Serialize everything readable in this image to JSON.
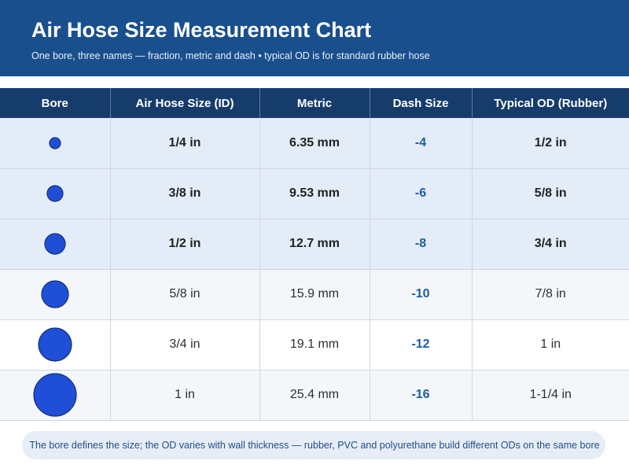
{
  "header": {
    "title": "Air Hose Size Measurement Chart",
    "subtitle": "One bore, three names — fraction, metric and dash • typical OD is for standard rubber hose"
  },
  "table": {
    "columns": [
      "Bore",
      "Air Hose Size (ID)",
      "Metric",
      "Dash Size",
      "Typical OD (Rubber)"
    ],
    "rows": [
      {
        "id": "1/4 in",
        "metric": "6.35 mm",
        "dash": "-4",
        "od": "1/2 in",
        "highlight": true
      },
      {
        "id": "3/8 in",
        "metric": "9.53 mm",
        "dash": "-6",
        "od": "5/8 in",
        "highlight": true
      },
      {
        "id": "1/2 in",
        "metric": "12.7 mm",
        "dash": "-8",
        "od": "3/4 in",
        "highlight": true
      },
      {
        "id": "5/8 in",
        "metric": "15.9 mm",
        "dash": "-10",
        "od": "7/8 in",
        "highlight": false
      },
      {
        "id": "3/4 in",
        "metric": "19.1 mm",
        "dash": "-12",
        "od": "1 in",
        "highlight": false
      },
      {
        "id": "1 in",
        "metric": "25.4 mm",
        "dash": "-16",
        "od": "1-1/4 in",
        "highlight": false
      }
    ]
  },
  "footer": {
    "note": "The bore defines the size; the OD varies with wall thickness — rubber, PVC and polyurethane build different ODs on the same bore"
  },
  "colors": {
    "header_bg": "#1a4f8d",
    "table_header_bg": "#163c6b",
    "bore_fill": "#1f4fd6",
    "bore_stroke": "#142f7a",
    "dash_text": "#1e5ca4",
    "common_row_bg": "#e3ecf7"
  }
}
